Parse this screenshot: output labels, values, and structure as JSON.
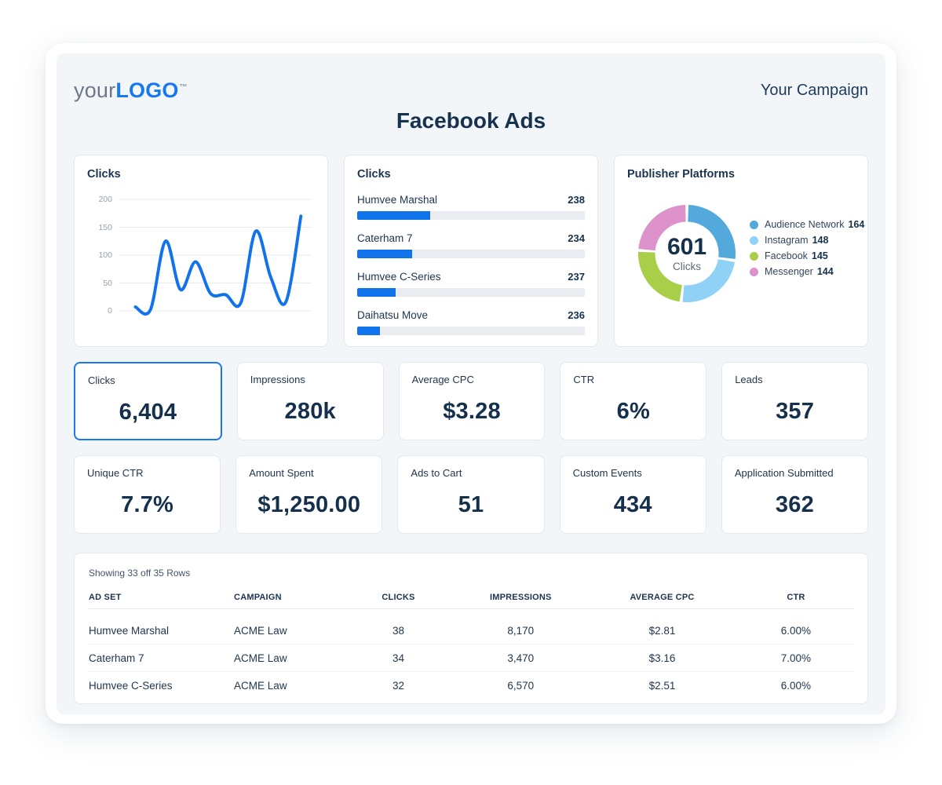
{
  "brand": {
    "logo_prefix": "your",
    "logo_main": "LOGO",
    "logo_tm": "™"
  },
  "header": {
    "campaign_label": "Your Campaign",
    "page_title": "Facebook Ads"
  },
  "colors": {
    "accent_blue": "#1173ec",
    "logo_blue": "#1778f2",
    "navy_text": "#16324e",
    "panel_bg": "#f3f6f9",
    "card_border": "#e4e8ed",
    "bar_track": "#e9edf2",
    "grid_line": "#e9ebee",
    "axis_label": "#97a1ac"
  },
  "chart_data": [
    {
      "id": "clicks_trend",
      "type": "line",
      "title": "Clicks",
      "values": [
        7,
        2,
        125,
        38,
        88,
        31,
        29,
        14,
        143,
        60,
        16,
        170
      ],
      "ylim": [
        0,
        200
      ],
      "yticks": [
        0,
        50,
        100,
        150,
        200
      ],
      "xlabel": "",
      "ylabel": "",
      "grid": true,
      "x_tick_labels_shown": false,
      "line_color": "#1173ec",
      "smooth": true
    },
    {
      "id": "clicks_by_adset",
      "type": "bar",
      "title": "Clicks",
      "orientation": "horizontal",
      "categories": [
        "Humvee Marshal",
        "Caterham 7",
        "Humvee C-Series",
        "Daihatsu Move"
      ],
      "values": [
        238,
        234,
        237,
        236
      ],
      "bar_fill_pct": [
        32,
        24,
        17,
        10
      ],
      "bar_color": "#1173ec",
      "track_color": "#e9edf2"
    },
    {
      "id": "publisher_platforms",
      "type": "pie",
      "donut": true,
      "title": "Publisher Platforms",
      "labels": [
        "Audience Network",
        "Instagram",
        "Facebook",
        "Messenger"
      ],
      "values": [
        164,
        148,
        145,
        144
      ],
      "colors": [
        "#54a9dc",
        "#8fd2f5",
        "#a9ce4a",
        "#dd92cc"
      ],
      "center_value": "601",
      "center_label": "Clicks",
      "legend_position": "right"
    }
  ],
  "kpis": [
    [
      {
        "label": "Clicks",
        "value": "6,404",
        "selected": true
      },
      {
        "label": "Impressions",
        "value": "280k",
        "selected": false
      },
      {
        "label": "Average CPC",
        "value": "$3.28",
        "selected": false
      },
      {
        "label": "CTR",
        "value": "6%",
        "selected": false
      },
      {
        "label": "Leads",
        "value": "357",
        "selected": false
      }
    ],
    [
      {
        "label": "Unique CTR",
        "value": "7.7%",
        "selected": false
      },
      {
        "label": "Amount Spent",
        "value": "$1,250.00",
        "selected": false
      },
      {
        "label": "Ads to Cart",
        "value": "51",
        "selected": false
      },
      {
        "label": "Custom Events",
        "value": "434",
        "selected": false
      },
      {
        "label": "Application Submitted",
        "value": "362",
        "selected": false
      }
    ]
  ],
  "table": {
    "summary": "Showing 33 off 35 Rows",
    "columns": [
      "AD SET",
      "CAMPAIGN",
      "CLICKS",
      "IMPRESSIONS",
      "AVERAGE CPC",
      "CTR"
    ],
    "column_align": [
      "left",
      "left",
      "center",
      "center",
      "center",
      "center"
    ],
    "rows": [
      [
        "Humvee Marshal",
        "ACME Law",
        "38",
        "8,170",
        "$2.81",
        "6.00%"
      ],
      [
        "Caterham 7",
        "ACME Law",
        "34",
        "3,470",
        "$3.16",
        "7.00%"
      ],
      [
        "Humvee C-Series",
        "ACME Law",
        "32",
        "6,570",
        "$2.51",
        "6.00%"
      ]
    ]
  }
}
